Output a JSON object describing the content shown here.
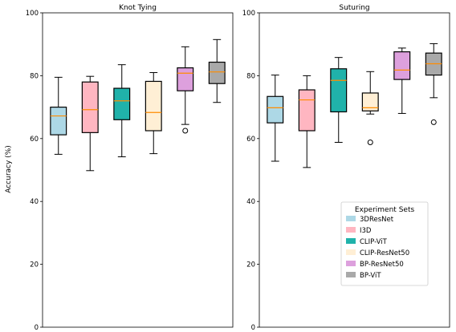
{
  "chart_data": [
    {
      "type": "box",
      "title": "Knot Tying",
      "ylabel": "Accuracy (%)",
      "ylim": [
        0,
        100
      ],
      "yticks": [
        0,
        20,
        40,
        60,
        80,
        100
      ],
      "series": [
        {
          "name": "3DResNet",
          "color": "#add8e6",
          "whisker_low": 55.0,
          "q1": 61.2,
          "median": 67.2,
          "q3": 70.0,
          "whisker_high": 79.5,
          "outliers": []
        },
        {
          "name": "I3D",
          "color": "#ffb6c1",
          "whisker_low": 49.8,
          "q1": 61.9,
          "median": 69.2,
          "q3": 78.0,
          "whisker_high": 79.8,
          "outliers": []
        },
        {
          "name": "CLIP-ViT",
          "color": "#20b2aa",
          "whisker_low": 54.2,
          "q1": 66.0,
          "median": 72.0,
          "q3": 76.0,
          "whisker_high": 83.5,
          "outliers": []
        },
        {
          "name": "CLIP-ResNet50",
          "color": "#ffefd5",
          "whisker_low": 55.2,
          "q1": 62.5,
          "median": 68.3,
          "q3": 78.2,
          "whisker_high": 81.0,
          "outliers": []
        },
        {
          "name": "BP-ResNet50",
          "color": "#dda0dd",
          "whisker_low": 64.5,
          "q1": 75.2,
          "median": 80.8,
          "q3": 82.5,
          "whisker_high": 89.2,
          "outliers": [
            62.5
          ]
        },
        {
          "name": "BP-ViT",
          "color": "#a9a9a9",
          "whisker_low": 71.5,
          "q1": 77.5,
          "median": 81.2,
          "q3": 84.3,
          "whisker_high": 91.5,
          "outliers": []
        }
      ]
    },
    {
      "type": "box",
      "title": "Suturing",
      "ylim": [
        0,
        100
      ],
      "yticks": [
        0,
        20,
        40,
        60,
        80,
        100
      ],
      "legend": {
        "title": "Experiment Sets",
        "placement": "lower-right"
      },
      "series": [
        {
          "name": "3DResNet",
          "color": "#add8e6",
          "whisker_low": 52.8,
          "q1": 65.0,
          "median": 69.8,
          "q3": 73.4,
          "whisker_high": 80.2,
          "outliers": []
        },
        {
          "name": "I3D",
          "color": "#ffb6c1",
          "whisker_low": 50.8,
          "q1": 62.5,
          "median": 72.3,
          "q3": 75.5,
          "whisker_high": 80.0,
          "outliers": []
        },
        {
          "name": "CLIP-ViT",
          "color": "#20b2aa",
          "whisker_low": 58.8,
          "q1": 68.5,
          "median": 78.5,
          "q3": 82.2,
          "whisker_high": 85.8,
          "outliers": []
        },
        {
          "name": "CLIP-ResNet50",
          "color": "#ffefd5",
          "whisker_low": 67.8,
          "q1": 68.8,
          "median": 69.8,
          "q3": 74.5,
          "whisker_high": 81.3,
          "outliers": [
            58.8
          ]
        },
        {
          "name": "BP-ResNet50",
          "color": "#dda0dd",
          "whisker_low": 68.0,
          "q1": 78.8,
          "median": 81.8,
          "q3": 87.6,
          "whisker_high": 88.8,
          "outliers": []
        },
        {
          "name": "BP-ViT",
          "color": "#a9a9a9",
          "whisker_low": 73.0,
          "q1": 80.2,
          "median": 83.8,
          "q3": 87.2,
          "whisker_high": 90.2,
          "outliers": [
            65.2
          ]
        }
      ]
    }
  ],
  "median_color": "#ff8c00"
}
